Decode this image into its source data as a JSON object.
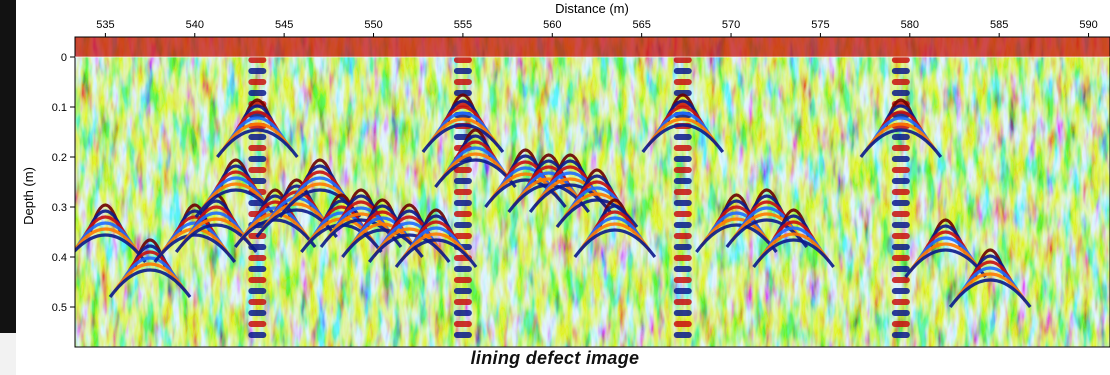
{
  "chart_data": {
    "type": "heatmap",
    "title": "",
    "xlabel": "Distance (m)",
    "ylabel": "Depth (m)",
    "x_ticks": [
      535,
      540,
      545,
      550,
      555,
      560,
      565,
      570,
      575,
      580,
      585,
      590
    ],
    "y_ticks": [
      "0",
      "0.1",
      "0.2",
      "0.3",
      "0.4",
      "0.5"
    ],
    "xlim": [
      533.3,
      591.2
    ],
    "ylim": [
      -0.04,
      0.58
    ],
    "colormap": [
      "#0a1a8c",
      "#1e6bff",
      "#29d6ff",
      "#9dff6b",
      "#ffe31c",
      "#ff7a00",
      "#c81010",
      "#6b0000"
    ],
    "grid": false,
    "hyperbola_apexes": [
      {
        "x": 535.0,
        "depth": 0.27
      },
      {
        "x": 537.5,
        "depth": 0.34
      },
      {
        "x": 540.0,
        "depth": 0.27
      },
      {
        "x": 541.2,
        "depth": 0.25
      },
      {
        "x": 542.3,
        "depth": 0.18
      },
      {
        "x": 543.5,
        "depth": 0.06
      },
      {
        "x": 544.5,
        "depth": 0.24
      },
      {
        "x": 545.7,
        "depth": 0.22
      },
      {
        "x": 547.0,
        "depth": 0.18
      },
      {
        "x": 548.2,
        "depth": 0.25
      },
      {
        "x": 549.3,
        "depth": 0.24
      },
      {
        "x": 550.5,
        "depth": 0.26
      },
      {
        "x": 552.0,
        "depth": 0.27
      },
      {
        "x": 553.5,
        "depth": 0.28
      },
      {
        "x": 555.0,
        "depth": 0.05
      },
      {
        "x": 555.7,
        "depth": 0.12
      },
      {
        "x": 558.5,
        "depth": 0.16
      },
      {
        "x": 559.8,
        "depth": 0.17
      },
      {
        "x": 561.0,
        "depth": 0.17
      },
      {
        "x": 562.5,
        "depth": 0.2
      },
      {
        "x": 563.5,
        "depth": 0.26
      },
      {
        "x": 567.3,
        "depth": 0.05
      },
      {
        "x": 570.3,
        "depth": 0.25
      },
      {
        "x": 572.0,
        "depth": 0.24
      },
      {
        "x": 573.5,
        "depth": 0.28
      },
      {
        "x": 579.5,
        "depth": 0.06
      },
      {
        "x": 582.0,
        "depth": 0.3
      },
      {
        "x": 584.5,
        "depth": 0.36
      }
    ],
    "vertical_anomalies": [
      543.5,
      555.0,
      567.3,
      579.5
    ]
  },
  "caption": "lining defect image"
}
